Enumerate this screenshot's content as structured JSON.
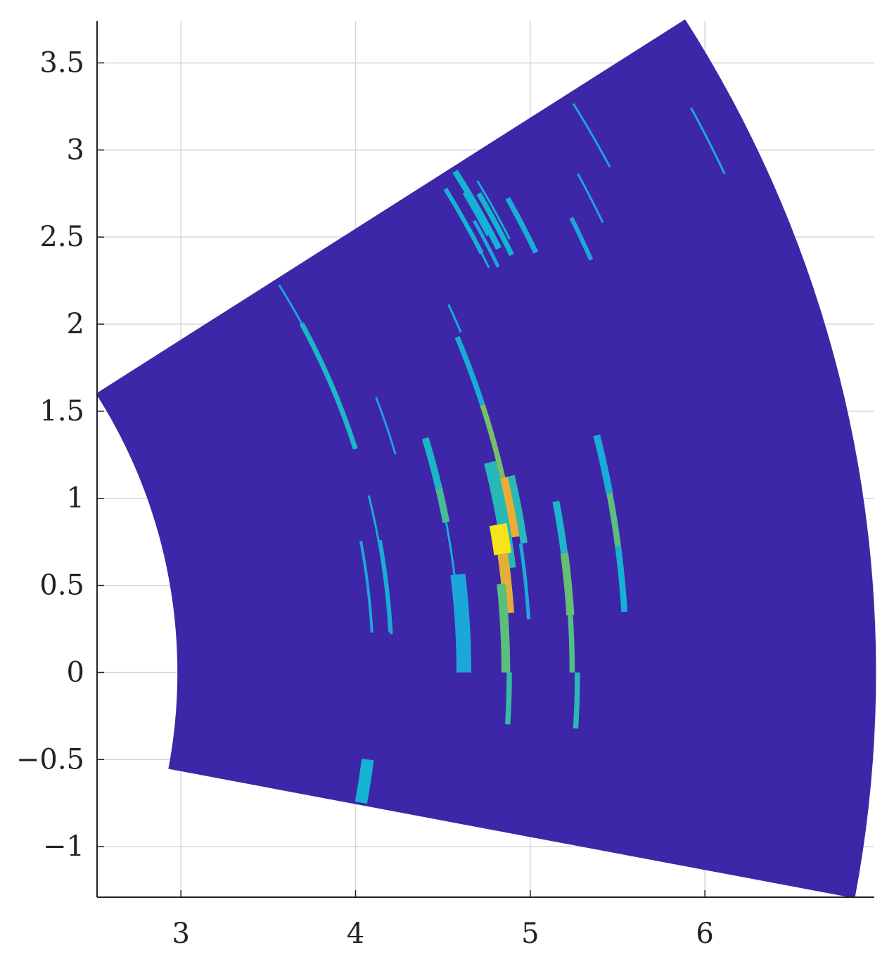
{
  "chart_data": {
    "type": "heatmap",
    "title": "",
    "xlabel": "",
    "ylabel": "",
    "xlim": [
      2.52,
      6.97
    ],
    "ylim": [
      -1.29,
      3.74
    ],
    "grid": true,
    "legend": "none",
    "x_ticks": [
      {
        "value": 3,
        "label": "3"
      },
      {
        "value": 4,
        "label": "4"
      },
      {
        "value": 5,
        "label": "5"
      },
      {
        "value": 6,
        "label": "6"
      }
    ],
    "y_ticks": [
      {
        "value": -1,
        "label": "−1"
      },
      {
        "value": -0.5,
        "label": "−0.5"
      },
      {
        "value": 0,
        "label": "0"
      },
      {
        "value": 0.5,
        "label": "0.5"
      },
      {
        "value": 1,
        "label": "1"
      },
      {
        "value": 1.5,
        "label": "1.5"
      },
      {
        "value": 2,
        "label": "2"
      },
      {
        "value": 2.5,
        "label": "2.5"
      },
      {
        "value": 3,
        "label": "3"
      },
      {
        "value": 3.5,
        "label": "3.5"
      }
    ],
    "sector": {
      "r_inner": 2.98,
      "r_outer": 6.98,
      "theta_min_deg": -10.7,
      "theta_max_deg": 32.5,
      "fill_color": "#3e26a8"
    },
    "colormap": [
      "#3e26a8",
      "#2e87f0",
      "#14b6d0",
      "#59c07b",
      "#bcbc3c",
      "#f6a935",
      "#f9fb0e"
    ],
    "value_range": [
      0,
      1
    ],
    "segments": [
      {
        "r": 4.2,
        "t0": 32.0,
        "t1": 28.5,
        "w": 0.012,
        "v": 0.25
      },
      {
        "r": 4.2,
        "t0": 28.5,
        "t1": 17.8,
        "w": 0.028,
        "v": 0.35
      },
      {
        "r": 4.41,
        "t0": 21.0,
        "t1": 16.5,
        "w": 0.012,
        "v": 0.25
      },
      {
        "r": 4.6,
        "t0": 17.0,
        "t1": 13.3,
        "w": 0.04,
        "v": 0.35
      },
      {
        "r": 4.6,
        "t0": 13.3,
        "t1": 10.8,
        "w": 0.04,
        "v": 0.45
      },
      {
        "r": 4.6,
        "t0": 10.8,
        "t1": 3.5,
        "w": 0.012,
        "v": 0.3
      },
      {
        "r": 4.2,
        "t0": 14.0,
        "t1": 3.2,
        "w": 0.012,
        "v": 0.3
      },
      {
        "r": 4.1,
        "t0": 10.6,
        "t1": 3.2,
        "w": 0.016,
        "v": 0.28
      },
      {
        "r": 4.21,
        "t0": 10.4,
        "t1": 3.0,
        "w": 0.018,
        "v": 0.3
      },
      {
        "r": 4.62,
        "t0": 7.0,
        "t1": 0.0,
        "w": 0.085,
        "v": 0.28
      },
      {
        "r": 4.97,
        "t0": 22.8,
        "t1": 18.0,
        "w": 0.03,
        "v": 0.3
      },
      {
        "r": 4.97,
        "t0": 18.0,
        "t1": 13.0,
        "w": 0.03,
        "v": 0.55
      },
      {
        "r": 4.97,
        "t0": 13.0,
        "t1": 9.0,
        "w": 0.06,
        "v": 0.8
      },
      {
        "r": 4.92,
        "t0": 14.2,
        "t1": 7.0,
        "w": 0.07,
        "v": 0.38
      },
      {
        "r": 4.89,
        "t0": 10.0,
        "t1": 8.0,
        "w": 0.1,
        "v": 0.95
      },
      {
        "r": 4.89,
        "t0": 8.0,
        "t1": 4.0,
        "w": 0.06,
        "v": 0.78
      },
      {
        "r": 4.86,
        "t0": 6.0,
        "t1": 0.0,
        "w": 0.05,
        "v": 0.5
      },
      {
        "r": 4.88,
        "t0": 0.0,
        "t1": -3.5,
        "w": 0.03,
        "v": 0.42
      },
      {
        "r": 5.02,
        "t0": 13.0,
        "t1": 8.5,
        "w": 0.04,
        "v": 0.38
      },
      {
        "r": 5.0,
        "t0": 8.5,
        "t1": 3.5,
        "w": 0.02,
        "v": 0.3
      },
      {
        "r": 5.24,
        "t0": 10.8,
        "t1": 7.5,
        "w": 0.04,
        "v": 0.35
      },
      {
        "r": 5.24,
        "t0": 7.5,
        "t1": 3.6,
        "w": 0.045,
        "v": 0.52
      },
      {
        "r": 5.24,
        "t0": 3.6,
        "t1": 0.0,
        "w": 0.03,
        "v": 0.48
      },
      {
        "r": 5.27,
        "t0": 0.0,
        "t1": -3.5,
        "w": 0.03,
        "v": 0.38
      },
      {
        "r": 5.55,
        "t0": 14.2,
        "t1": 10.7,
        "w": 0.04,
        "v": 0.3
      },
      {
        "r": 5.55,
        "t0": 10.7,
        "t1": 7.5,
        "w": 0.035,
        "v": 0.5
      },
      {
        "r": 5.55,
        "t0": 7.5,
        "t1": 3.6,
        "w": 0.035,
        "v": 0.32
      },
      {
        "r": 4.1,
        "t0": -7.0,
        "t1": -10.5,
        "w": 0.07,
        "v": 0.32
      },
      {
        "r": 5.0,
        "t0": 25.0,
        "t1": 23.0,
        "w": 0.012,
        "v": 0.3
      },
      {
        "r": 5.48,
        "t0": 31.0,
        "t1": 27.0,
        "w": 0.012,
        "v": 0.3
      },
      {
        "r": 5.3,
        "t0": 29.5,
        "t1": 26.0,
        "w": 0.012,
        "v": 0.3
      },
      {
        "r": 5.38,
        "t0": 30.8,
        "t1": 27.8,
        "w": 0.02,
        "v": 0.3
      },
      {
        "r": 5.3,
        "t0": 31.6,
        "t1": 27.0,
        "w": 0.025,
        "v": 0.32
      },
      {
        "r": 5.35,
        "t0": 29.0,
        "t1": 25.8,
        "w": 0.02,
        "v": 0.28
      },
      {
        "r": 5.4,
        "t0": 32.2,
        "t1": 26.8,
        "w": 0.035,
        "v": 0.32
      },
      {
        "r": 5.45,
        "t0": 30.3,
        "t1": 26.1,
        "w": 0.03,
        "v": 0.32
      },
      {
        "r": 5.58,
        "t0": 29.2,
        "t1": 25.6,
        "w": 0.03,
        "v": 0.3
      },
      {
        "r": 5.85,
        "t0": 26.5,
        "t1": 23.9,
        "w": 0.025,
        "v": 0.28
      },
      {
        "r": 6.18,
        "t0": 31.9,
        "t1": 28.0,
        "w": 0.012,
        "v": 0.28
      },
      {
        "r": 6.0,
        "t0": 28.5,
        "t1": 25.5,
        "w": 0.012,
        "v": 0.28
      },
      {
        "r": 6.75,
        "t0": 28.7,
        "t1": 25.1,
        "w": 0.012,
        "v": 0.3
      }
    ]
  }
}
